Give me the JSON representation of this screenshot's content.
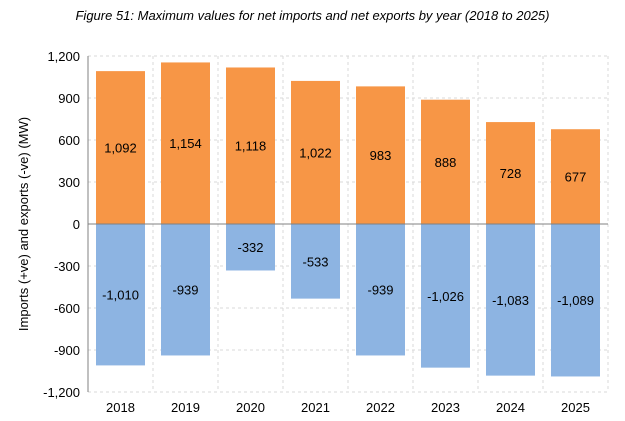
{
  "chart_data": {
    "type": "bar",
    "title": "Figure 51: Maximum values for net imports and net exports by year (2018 to 2025)",
    "xlabel": "",
    "ylabel": "Imports (+ve) and exports (-ve)  (MW)",
    "categories": [
      "2018",
      "2019",
      "2020",
      "2021",
      "2022",
      "2023",
      "2024",
      "2025"
    ],
    "series": [
      {
        "values": [
          1092,
          1154,
          1118,
          1022,
          983,
          888,
          728,
          677
        ],
        "labels": [
          "1,092",
          "1,154",
          "1,118",
          "1,022",
          "983",
          "888",
          "728",
          "677"
        ],
        "color": "#F79646"
      },
      {
        "values": [
          -1010,
          -939,
          -332,
          -533,
          -939,
          -1026,
          -1083,
          -1089
        ],
        "labels": [
          "-1,010",
          "-939",
          "-332",
          "-533",
          "-939",
          "-1,026",
          "-1,083",
          "-1,089"
        ],
        "color": "#8DB4E2"
      }
    ],
    "ylim": [
      -1200,
      1200
    ],
    "yticks": [
      1200,
      900,
      600,
      300,
      0,
      -300,
      -600,
      -900,
      -1200
    ],
    "ytick_labels": [
      "1,200",
      "900",
      "600",
      "300",
      "0",
      "-300",
      "-600",
      "-900",
      "-1,200"
    ],
    "grid": true,
    "legend": "none"
  }
}
